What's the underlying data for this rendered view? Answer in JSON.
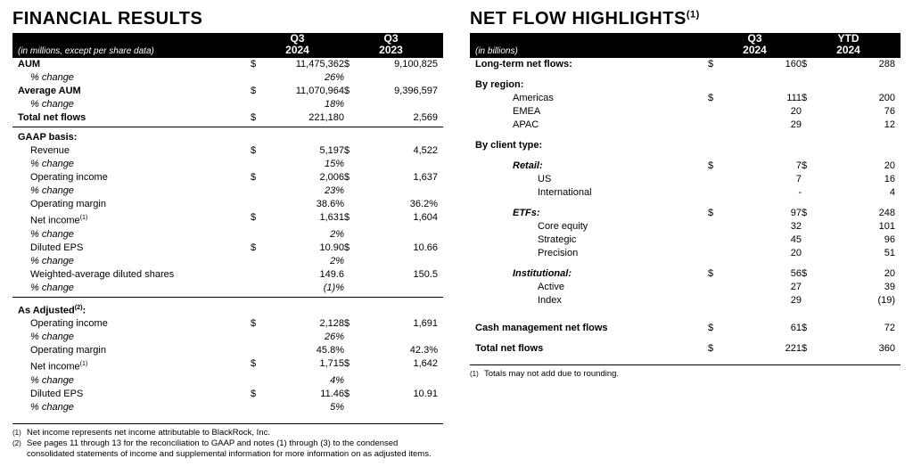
{
  "left": {
    "title": "FINANCIAL RESULTS",
    "stub": "(in millions, except per share data)",
    "periods": [
      {
        "top": "Q3",
        "sub": "2024"
      },
      {
        "top": "Q3",
        "sub": "2023"
      }
    ],
    "topRows": [
      {
        "label": "AUM",
        "bold": true,
        "u": "$",
        "v1": "11,475,362",
        "u2": "$",
        "v2": "9,100,825"
      },
      {
        "label": "% change",
        "pct": true,
        "v1": "26%"
      },
      {
        "label": "Average AUM",
        "bold": true,
        "u": "$",
        "v1": "11,070,964",
        "u2": "$",
        "v2": "9,396,597"
      },
      {
        "label": "% change",
        "pct": true,
        "v1": "18%"
      },
      {
        "label": "Total net flows",
        "bold": true,
        "u": "$",
        "v1": "221,180",
        "v2": "2,569"
      }
    ],
    "gaapTitle": "GAAP basis:",
    "gaapRows": [
      {
        "label": "Revenue",
        "ind": 1,
        "u": "$",
        "v1": "5,197",
        "u2": "$",
        "v2": "4,522"
      },
      {
        "label": "% change",
        "pct": true,
        "v1": "15%"
      },
      {
        "label": "Operating income",
        "ind": 1,
        "u": "$",
        "v1": "2,006",
        "u2": "$",
        "v2": "1,637"
      },
      {
        "label": "% change",
        "pct": true,
        "v1": "23%"
      },
      {
        "label": "Operating margin",
        "ind": 1,
        "v1": "38.6%",
        "v2": "36.2%"
      },
      {
        "label": "Net income",
        "ind": 1,
        "sup": "(1)",
        "u": "$",
        "v1": "1,631",
        "u2": "$",
        "v2": "1,604"
      },
      {
        "label": "% change",
        "pct": true,
        "v1": "2%"
      },
      {
        "label": "Diluted EPS",
        "ind": 1,
        "u": "$",
        "v1": "10.90",
        "u2": "$",
        "v2": "10.66"
      },
      {
        "label": "% change",
        "pct": true,
        "v1": "2%"
      },
      {
        "label": "Weighted-average diluted shares",
        "ind": 1,
        "v1": "149.6",
        "v2": "150.5"
      },
      {
        "label": "% change",
        "pct": true,
        "v1": "(1)%"
      }
    ],
    "adjTitleLabel": "As Adjusted",
    "adjTitleSup": "(2)",
    "adjRows": [
      {
        "label": "Operating income",
        "ind": 1,
        "u": "$",
        "v1": "2,128",
        "u2": "$",
        "v2": "1,691"
      },
      {
        "label": "% change",
        "pct": true,
        "v1": "26%"
      },
      {
        "label": "Operating margin",
        "ind": 1,
        "v1": "45.8%",
        "v2": "42.3%"
      },
      {
        "label": "Net income",
        "ind": 1,
        "sup": "(1)",
        "u": "$",
        "v1": "1,715",
        "u2": "$",
        "v2": "1,642"
      },
      {
        "label": "% change",
        "pct": true,
        "v1": "4%"
      },
      {
        "label": "Diluted EPS",
        "ind": 1,
        "u": "$",
        "v1": "11.46",
        "u2": "$",
        "v2": "10.91"
      },
      {
        "label": "% change",
        "pct": true,
        "v1": "5%"
      }
    ],
    "footnotes": [
      {
        "n": "(1)",
        "t": "Net income represents net income attributable to BlackRock, Inc."
      },
      {
        "n": "(2)",
        "t": "See pages 11 through 13 for the reconciliation to GAAP and notes (1) through (3) to the condensed consolidated statements of income and supplemental information for more information on as adjusted items."
      }
    ]
  },
  "right": {
    "titleLabel": "NET FLOW HIGHLIGHTS",
    "titleSup": "(1)",
    "stub": "(in billions)",
    "periods": [
      {
        "top": "Q3",
        "sub": "2024"
      },
      {
        "top": "YTD",
        "sub": "2024"
      }
    ],
    "rows": [
      {
        "label": "Long-term net flows:",
        "bold": true,
        "u": "$",
        "v1": "160",
        "u2": "$",
        "v2": "288"
      },
      {
        "spacer": true
      },
      {
        "label": "By region:",
        "bold": true
      },
      {
        "label": "Americas",
        "ind": 2,
        "u": "$",
        "v1": "111",
        "u2": "$",
        "v2": "200"
      },
      {
        "label": "EMEA",
        "ind": 2,
        "v1": "20",
        "v2": "76"
      },
      {
        "label": "APAC",
        "ind": 2,
        "v1": "29",
        "v2": "12"
      },
      {
        "spacer": true
      },
      {
        "label": "By client type:",
        "bold": true
      },
      {
        "spacer": true
      },
      {
        "label": "Retail:",
        "ind": 2,
        "italic": true,
        "bold": true,
        "u": "$",
        "v1": "7",
        "u2": "$",
        "v2": "20"
      },
      {
        "label": "US",
        "ind": 2,
        "sub": true,
        "v1": "7",
        "v2": "16"
      },
      {
        "label": "International",
        "ind": 2,
        "sub": true,
        "v1": "-",
        "v2": "4"
      },
      {
        "spacer": true
      },
      {
        "label": "ETFs:",
        "ind": 2,
        "italic": true,
        "bold": true,
        "u": "$",
        "v1": "97",
        "u2": "$",
        "v2": "248"
      },
      {
        "label": "Core equity",
        "ind": 2,
        "sub": true,
        "v1": "32",
        "v2": "101"
      },
      {
        "label": "Strategic",
        "ind": 2,
        "sub": true,
        "v1": "45",
        "v2": "96"
      },
      {
        "label": "Precision",
        "ind": 2,
        "sub": true,
        "v1": "20",
        "v2": "51"
      },
      {
        "spacer": true
      },
      {
        "label": "Institutional:",
        "ind": 2,
        "italic": true,
        "bold": true,
        "u": "$",
        "v1": "56",
        "u2": "$",
        "v2": "20"
      },
      {
        "label": "Active",
        "ind": 2,
        "sub": true,
        "v1": "27",
        "v2": "39"
      },
      {
        "label": "Index",
        "ind": 2,
        "sub": true,
        "v1": "29",
        "v2": "(19)"
      },
      {
        "spacer": true
      },
      {
        "spacer": true
      },
      {
        "label": "Cash management net flows",
        "bold": true,
        "u": "$",
        "v1": "61",
        "u2": "$",
        "v2": "72"
      },
      {
        "spacer": true
      },
      {
        "label": "Total net flows",
        "bold": true,
        "u": "$",
        "v1": "221",
        "u2": "$",
        "v2": "360"
      }
    ],
    "footnotes": [
      {
        "n": "(1)",
        "t": "Totals may not add due to rounding."
      }
    ]
  }
}
